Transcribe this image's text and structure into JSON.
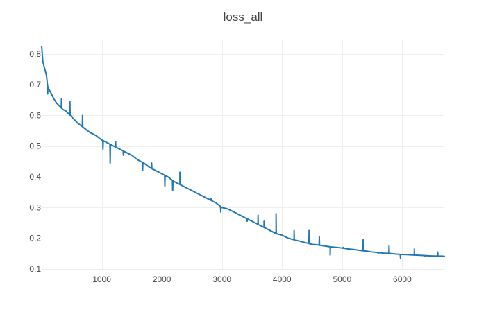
{
  "chart_data": {
    "type": "line",
    "title": "loss_all",
    "xlabel": "",
    "ylabel": "",
    "xlim": [
      0,
      6700
    ],
    "ylim": [
      0.095,
      0.845
    ],
    "grid": true,
    "x_ticks": [
      1000,
      2000,
      3000,
      4000,
      5000,
      6000
    ],
    "y_ticks": [
      0.1,
      0.2,
      0.3,
      0.4,
      0.5,
      0.6,
      0.7,
      0.8
    ],
    "series": [
      {
        "color": "#1f77b4",
        "x": [
          0,
          20,
          40,
          60,
          80,
          100,
          120,
          150,
          200,
          250,
          300,
          350,
          400,
          450,
          500,
          550,
          600,
          700,
          800,
          900,
          1000,
          1100,
          1200,
          1300,
          1400,
          1500,
          1600,
          1700,
          1800,
          1900,
          2000,
          2100,
          2200,
          2300,
          2400,
          2500,
          2600,
          2700,
          2800,
          2900,
          3000,
          3100,
          3200,
          3300,
          3400,
          3500,
          3600,
          3700,
          3800,
          3900,
          4000,
          4100,
          4200,
          4300,
          4400,
          4500,
          4600,
          4700,
          4800,
          4900,
          5000,
          5100,
          5200,
          5300,
          5400,
          5500,
          5600,
          5700,
          5800,
          5900,
          6000,
          6100,
          6200,
          6300,
          6400,
          6500,
          6600,
          6700
        ],
        "y": [
          0.825,
          0.775,
          0.76,
          0.745,
          0.73,
          0.695,
          0.685,
          0.675,
          0.655,
          0.64,
          0.63,
          0.62,
          0.615,
          0.605,
          0.595,
          0.585,
          0.575,
          0.56,
          0.545,
          0.535,
          0.52,
          0.51,
          0.5,
          0.49,
          0.48,
          0.47,
          0.455,
          0.445,
          0.43,
          0.42,
          0.41,
          0.4,
          0.385,
          0.375,
          0.365,
          0.355,
          0.345,
          0.335,
          0.325,
          0.315,
          0.3,
          0.295,
          0.285,
          0.275,
          0.265,
          0.255,
          0.245,
          0.235,
          0.225,
          0.215,
          0.21,
          0.2,
          0.195,
          0.19,
          0.185,
          0.18,
          0.178,
          0.175,
          0.172,
          0.17,
          0.168,
          0.165,
          0.163,
          0.16,
          0.158,
          0.155,
          0.153,
          0.151,
          0.15,
          0.148,
          0.147,
          0.146,
          0.145,
          0.144,
          0.143,
          0.142,
          0.142,
          0.141
        ],
        "spikes": [
          {
            "x": 100,
            "y": 0.67
          },
          {
            "x": 330,
            "y": 0.655
          },
          {
            "x": 470,
            "y": 0.645
          },
          {
            "x": 680,
            "y": 0.6
          },
          {
            "x": 1020,
            "y": 0.49
          },
          {
            "x": 1140,
            "y": 0.445
          },
          {
            "x": 1230,
            "y": 0.515
          },
          {
            "x": 1360,
            "y": 0.47
          },
          {
            "x": 1680,
            "y": 0.42
          },
          {
            "x": 1830,
            "y": 0.445
          },
          {
            "x": 2050,
            "y": 0.37
          },
          {
            "x": 2180,
            "y": 0.355
          },
          {
            "x": 2300,
            "y": 0.415
          },
          {
            "x": 2820,
            "y": 0.33
          },
          {
            "x": 2980,
            "y": 0.285
          },
          {
            "x": 3420,
            "y": 0.255
          },
          {
            "x": 3600,
            "y": 0.275
          },
          {
            "x": 3700,
            "y": 0.255
          },
          {
            "x": 3900,
            "y": 0.28
          },
          {
            "x": 4200,
            "y": 0.225
          },
          {
            "x": 4450,
            "y": 0.225
          },
          {
            "x": 4620,
            "y": 0.205
          },
          {
            "x": 4800,
            "y": 0.145
          },
          {
            "x": 5020,
            "y": 0.17
          },
          {
            "x": 5350,
            "y": 0.195
          },
          {
            "x": 5600,
            "y": 0.15
          },
          {
            "x": 5780,
            "y": 0.175
          },
          {
            "x": 5970,
            "y": 0.135
          },
          {
            "x": 6200,
            "y": 0.165
          },
          {
            "x": 6380,
            "y": 0.14
          },
          {
            "x": 6590,
            "y": 0.155
          }
        ]
      }
    ]
  }
}
